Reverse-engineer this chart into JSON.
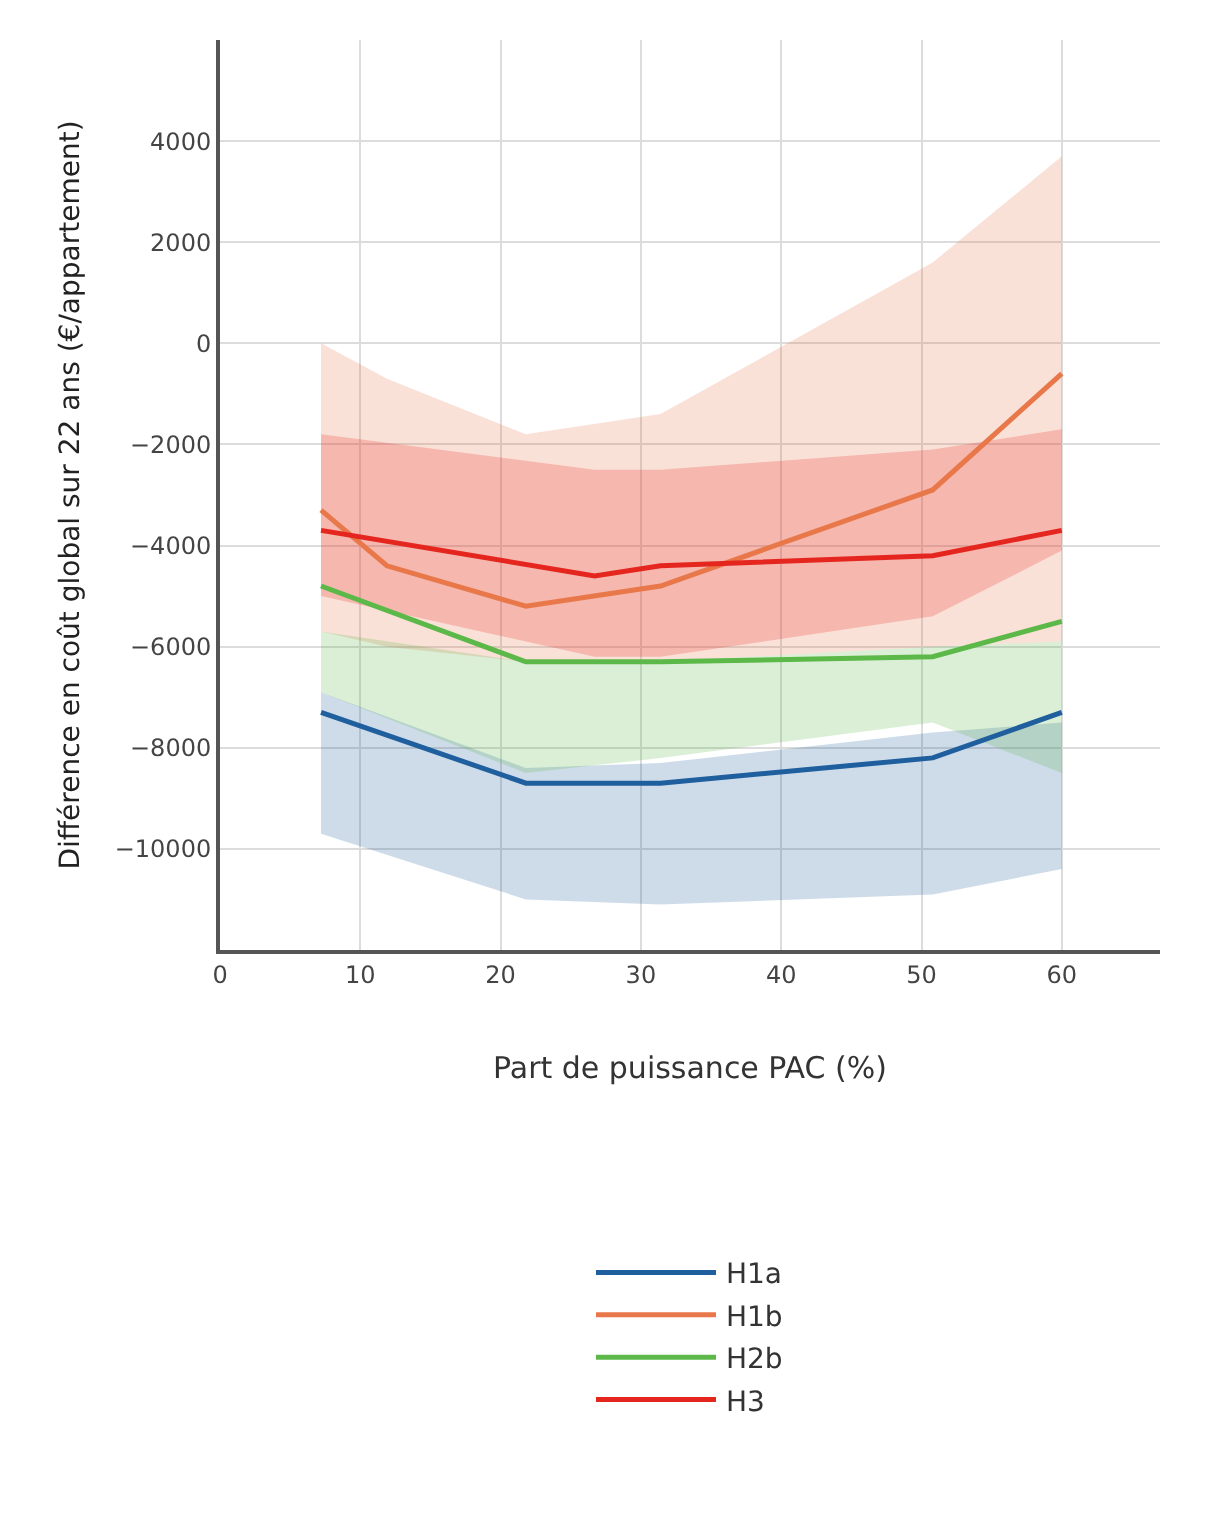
{
  "chart_data": {
    "type": "line",
    "xlabel": "Part de puissance PAC (%)",
    "ylabel": "Différence en coût global sur 22 ans (€/appartement)",
    "xlim": [
      0,
      67
    ],
    "xticks": [
      0,
      10,
      20,
      30,
      40,
      50,
      60
    ],
    "ylim": [
      -12000,
      6000
    ],
    "yticks": [
      -10000,
      -8000,
      -6000,
      -4000,
      -2000,
      0,
      2000,
      4000
    ],
    "grid": true,
    "legend": "bottom",
    "marker": "none",
    "line_style": "solid",
    "series": [
      {
        "name": "H1a",
        "color": "#1f5f9e",
        "x": [
          7.2,
          21.8,
          31.4,
          50.8,
          60
        ],
        "values": [
          -7300,
          -8700,
          -8700,
          -8200,
          -7300
        ],
        "lower": [
          -9700,
          -11000,
          -11100,
          -10900,
          -10400
        ],
        "upper": [
          -6900,
          -8400,
          -8300,
          -7700,
          -7500
        ]
      },
      {
        "name": "H1b",
        "color": "#e8784a",
        "x": [
          7.2,
          11.9,
          21.8,
          31.4,
          50.8,
          60
        ],
        "values": [
          -3300,
          -4400,
          -5200,
          -4800,
          -2900,
          -600
        ],
        "lower": [
          -5700,
          -6000,
          -6300,
          -6300,
          -6000,
          -5900
        ],
        "upper": [
          0,
          -700,
          -1800,
          -1400,
          1600,
          3700
        ]
      },
      {
        "name": "H2b",
        "color": "#5cb848",
        "x": [
          7.2,
          21.8,
          31.4,
          50.8,
          60
        ],
        "values": [
          -4800,
          -6300,
          -6300,
          -6200,
          -5500
        ],
        "lower": [
          -6900,
          -8500,
          -8200,
          -7500,
          -8500
        ],
        "upper": [
          -5700,
          -6300,
          -6300,
          -6000,
          -5900
        ]
      },
      {
        "name": "H3",
        "color": "#e4261f",
        "x": [
          7.2,
          26.7,
          31.4,
          50.8,
          60
        ],
        "values": [
          -3700,
          -4600,
          -4400,
          -4200,
          -3700
        ],
        "lower": [
          -5000,
          -6200,
          -6200,
          -5400,
          -4100
        ],
        "upper": [
          -1800,
          -2500,
          -2500,
          -2100,
          -1700
        ]
      }
    ]
  }
}
